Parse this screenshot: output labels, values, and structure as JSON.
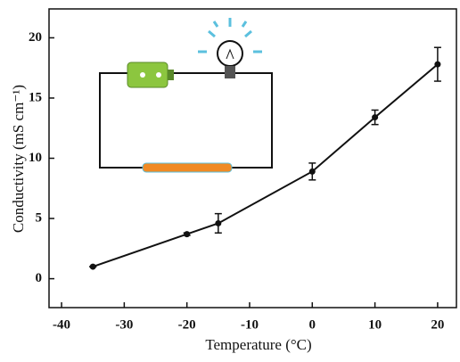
{
  "chart_data": {
    "type": "line",
    "x_label": "Temperature (°C)",
    "y_label": "Conductivity (mS cm⁻¹)",
    "x": [
      -35,
      -20,
      -15,
      0,
      10,
      20
    ],
    "series": [
      {
        "color": "#111111",
        "values": [
          1.0,
          3.7,
          4.6,
          8.9,
          13.4,
          17.8
        ],
        "errors": [
          0,
          0.1,
          0.8,
          0.7,
          0.6,
          1.4
        ]
      }
    ],
    "xlim": [
      -42,
      23
    ],
    "xticks": [
      -40,
      -30,
      -20,
      -10,
      0,
      10,
      20
    ],
    "ylim": [
      -2.4,
      22.4
    ],
    "yticks": [
      0,
      5,
      10,
      15,
      20
    ]
  }
}
